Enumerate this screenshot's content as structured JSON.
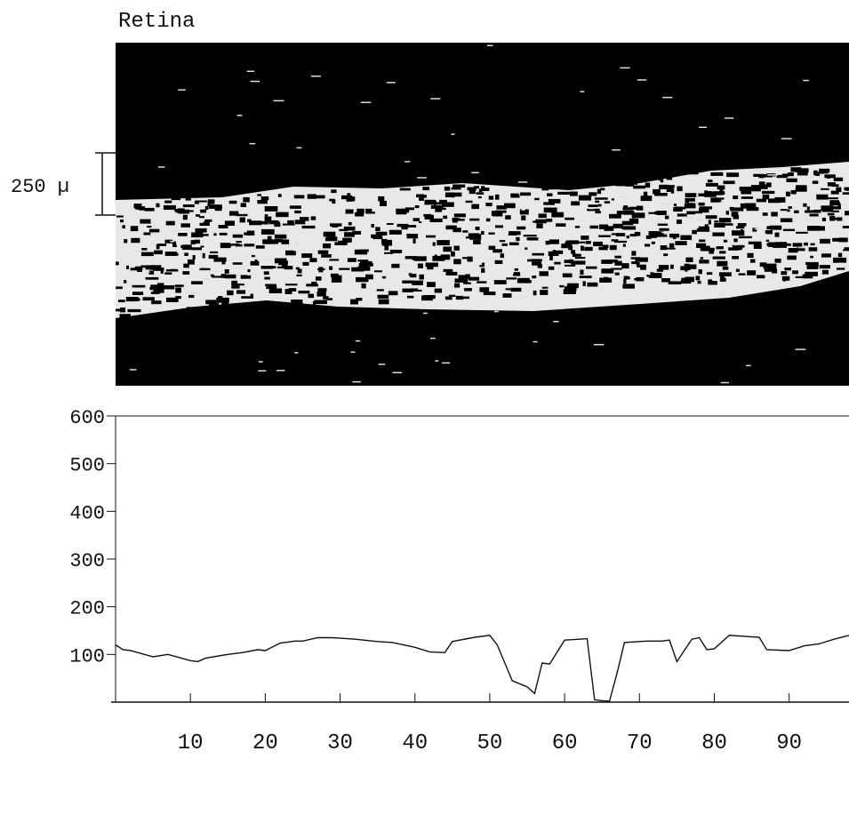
{
  "image_title": "Retina",
  "scale_bar_label": "250 µ",
  "colors": {
    "background": "#ffffff",
    "ink": "#111111",
    "scan_background": "#000000",
    "tissue": "#f0f0f0"
  },
  "chart_data": {
    "type": "line",
    "title": "",
    "xlabel": "",
    "ylabel": "",
    "xlim": [
      0,
      98
    ],
    "ylim": [
      0,
      600
    ],
    "x_ticks": [
      10,
      20,
      30,
      40,
      50,
      60,
      70,
      80,
      90
    ],
    "y_ticks": [
      100,
      200,
      300,
      400,
      500,
      600
    ],
    "grid": false,
    "legend": "none",
    "series": [
      {
        "x": [
          0,
          1,
          2,
          5,
          7,
          10,
          11,
          12,
          15,
          17,
          19,
          20,
          22,
          24,
          25,
          27,
          29,
          32,
          35,
          37,
          40,
          42,
          44,
          45,
          48,
          50,
          51,
          53,
          55,
          56,
          57,
          58,
          60,
          62,
          63,
          64,
          65,
          66,
          67,
          68,
          71,
          73,
          74,
          75,
          77,
          78,
          79,
          80,
          82,
          84,
          86,
          87,
          90,
          92,
          94,
          96,
          98
        ],
        "y": [
          120,
          110,
          108,
          95,
          100,
          87,
          85,
          92,
          100,
          104,
          110,
          108,
          124,
          128,
          128,
          135,
          135,
          132,
          127,
          125,
          115,
          105,
          104,
          127,
          136,
          140,
          120,
          45,
          32,
          18,
          82,
          80,
          130,
          132,
          133,
          5,
          3,
          2,
          60,
          125,
          128,
          128,
          130,
          85,
          132,
          135,
          110,
          112,
          140,
          138,
          136,
          110,
          108,
          118,
          122,
          132,
          140
        ]
      }
    ]
  }
}
